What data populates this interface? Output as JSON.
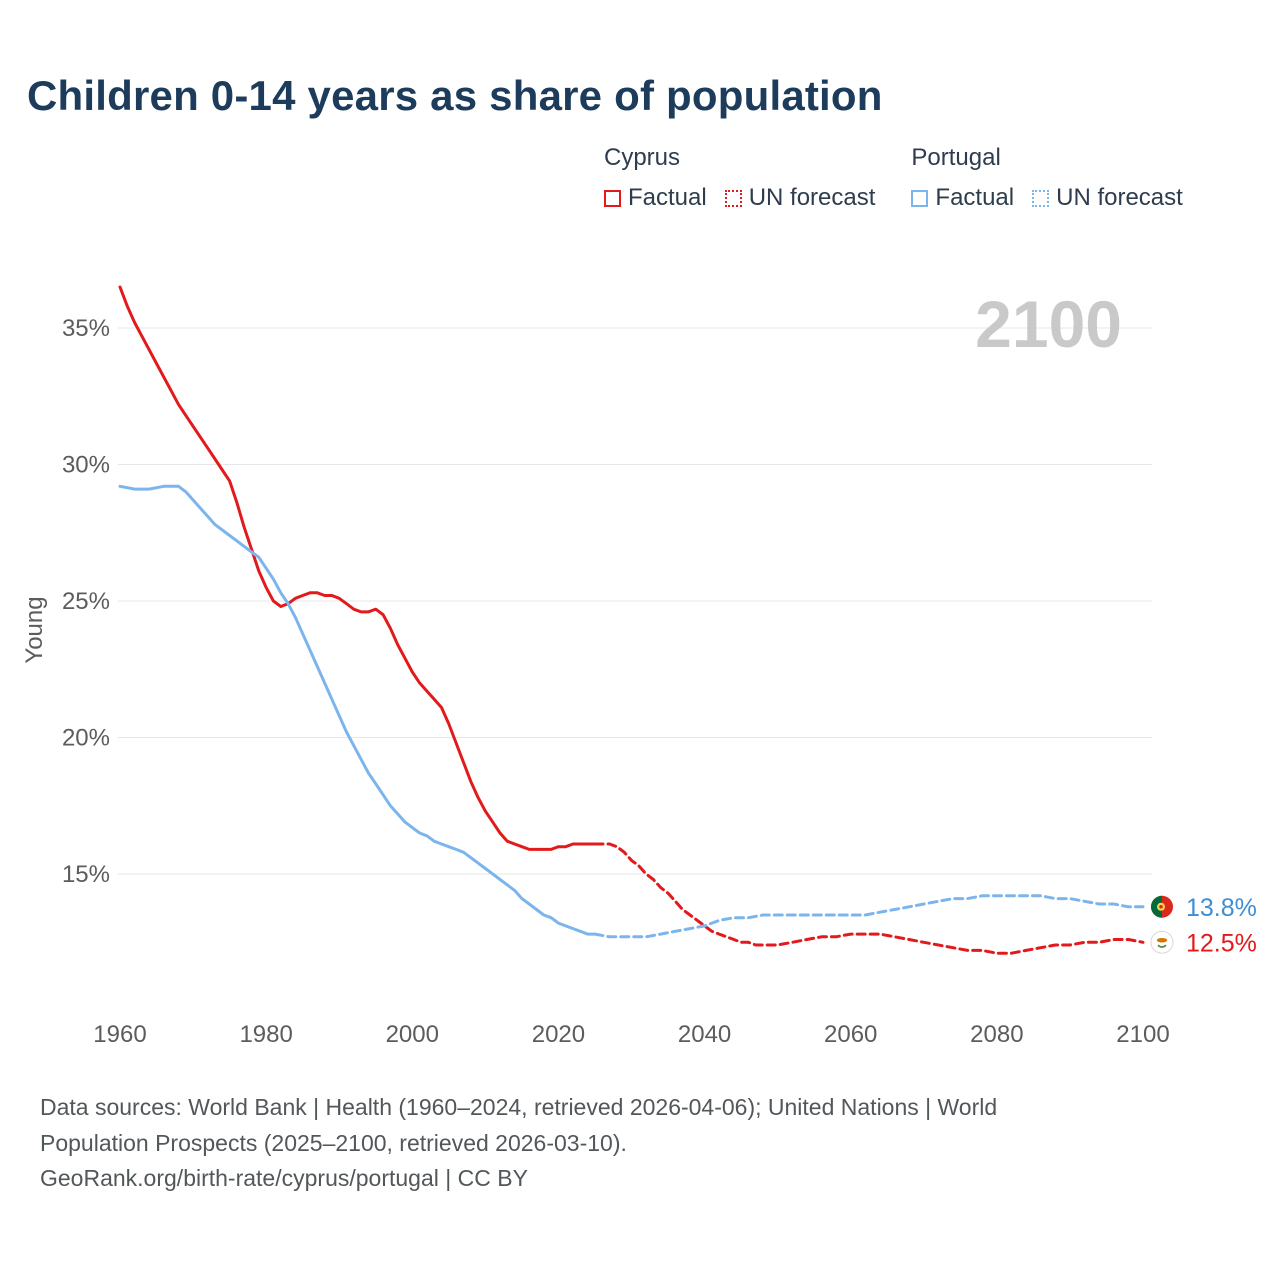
{
  "title": "Children 0-14 years as share of population",
  "colors": {
    "cyprus": "#e31a1c",
    "portugal": "#7cb5ec",
    "portugal_label": "#3e8ed6",
    "title": "#1d3c5c",
    "watermark": "#c9c9c9"
  },
  "legend": {
    "groups": [
      {
        "title": "Cyprus",
        "items": [
          {
            "label": "Factual",
            "style": "solid"
          },
          {
            "label": "UN forecast",
            "style": "dotted"
          }
        ]
      },
      {
        "title": "Portugal",
        "items": [
          {
            "label": "Factual",
            "style": "solid"
          },
          {
            "label": "UN forecast",
            "style": "dotted"
          }
        ]
      }
    ]
  },
  "chart_data": {
    "type": "line",
    "title": "Children 0-14 years as share of population",
    "xlabel": "",
    "ylabel": "Young",
    "x_ticks": [
      1960,
      1980,
      2000,
      2020,
      2040,
      2060,
      2080,
      2100
    ],
    "y_ticks": [
      15,
      20,
      25,
      30,
      35
    ],
    "xlim": [
      1960,
      2100
    ],
    "ylim": [
      11.5,
      37
    ],
    "grid": "horizontal",
    "legend_position": "top-right",
    "watermark": "2100",
    "series": [
      {
        "name": "Cyprus Factual",
        "color": "#e31a1c",
        "dash": "solid",
        "points": [
          [
            1960,
            36.5
          ],
          [
            1961,
            35.8
          ],
          [
            1962,
            35.2
          ],
          [
            1963,
            34.7
          ],
          [
            1964,
            34.2
          ],
          [
            1965,
            33.7
          ],
          [
            1966,
            33.2
          ],
          [
            1967,
            32.7
          ],
          [
            1968,
            32.2
          ],
          [
            1969,
            31.8
          ],
          [
            1970,
            31.4
          ],
          [
            1971,
            31.0
          ],
          [
            1972,
            30.6
          ],
          [
            1973,
            30.2
          ],
          [
            1974,
            29.8
          ],
          [
            1975,
            29.4
          ],
          [
            1976,
            28.6
          ],
          [
            1977,
            27.7
          ],
          [
            1978,
            26.9
          ],
          [
            1979,
            26.1
          ],
          [
            1980,
            25.5
          ],
          [
            1981,
            25.0
          ],
          [
            1982,
            24.8
          ],
          [
            1983,
            24.9
          ],
          [
            1984,
            25.1
          ],
          [
            1985,
            25.2
          ],
          [
            1986,
            25.3
          ],
          [
            1987,
            25.3
          ],
          [
            1988,
            25.2
          ],
          [
            1989,
            25.2
          ],
          [
            1990,
            25.1
          ],
          [
            1991,
            24.9
          ],
          [
            1992,
            24.7
          ],
          [
            1993,
            24.6
          ],
          [
            1994,
            24.6
          ],
          [
            1995,
            24.7
          ],
          [
            1996,
            24.5
          ],
          [
            1997,
            24.0
          ],
          [
            1998,
            23.4
          ],
          [
            1999,
            22.9
          ],
          [
            2000,
            22.4
          ],
          [
            2001,
            22.0
          ],
          [
            2002,
            21.7
          ],
          [
            2003,
            21.4
          ],
          [
            2004,
            21.1
          ],
          [
            2005,
            20.5
          ],
          [
            2006,
            19.8
          ],
          [
            2007,
            19.1
          ],
          [
            2008,
            18.4
          ],
          [
            2009,
            17.8
          ],
          [
            2010,
            17.3
          ],
          [
            2011,
            16.9
          ],
          [
            2012,
            16.5
          ],
          [
            2013,
            16.2
          ],
          [
            2014,
            16.1
          ],
          [
            2015,
            16.0
          ],
          [
            2016,
            15.9
          ],
          [
            2017,
            15.9
          ],
          [
            2018,
            15.9
          ],
          [
            2019,
            15.9
          ],
          [
            2020,
            16.0
          ],
          [
            2021,
            16.0
          ],
          [
            2022,
            16.1
          ],
          [
            2023,
            16.1
          ],
          [
            2024,
            16.1
          ],
          [
            2025,
            16.1
          ]
        ]
      },
      {
        "name": "Cyprus UN forecast",
        "color": "#e31a1c",
        "dash": "dashed",
        "points": [
          [
            2025,
            16.1
          ],
          [
            2026,
            16.1
          ],
          [
            2027,
            16.1
          ],
          [
            2028,
            16.0
          ],
          [
            2029,
            15.8
          ],
          [
            2030,
            15.5
          ],
          [
            2031,
            15.3
          ],
          [
            2032,
            15.0
          ],
          [
            2033,
            14.8
          ],
          [
            2034,
            14.5
          ],
          [
            2035,
            14.3
          ],
          [
            2036,
            14.0
          ],
          [
            2037,
            13.7
          ],
          [
            2038,
            13.5
          ],
          [
            2039,
            13.3
          ],
          [
            2040,
            13.1
          ],
          [
            2041,
            12.9
          ],
          [
            2042,
            12.8
          ],
          [
            2043,
            12.7
          ],
          [
            2044,
            12.6
          ],
          [
            2045,
            12.5
          ],
          [
            2046,
            12.5
          ],
          [
            2047,
            12.4
          ],
          [
            2048,
            12.4
          ],
          [
            2049,
            12.4
          ],
          [
            2050,
            12.4
          ],
          [
            2052,
            12.5
          ],
          [
            2054,
            12.6
          ],
          [
            2056,
            12.7
          ],
          [
            2058,
            12.7
          ],
          [
            2060,
            12.8
          ],
          [
            2062,
            12.8
          ],
          [
            2064,
            12.8
          ],
          [
            2066,
            12.7
          ],
          [
            2068,
            12.6
          ],
          [
            2070,
            12.5
          ],
          [
            2072,
            12.4
          ],
          [
            2074,
            12.3
          ],
          [
            2076,
            12.2
          ],
          [
            2078,
            12.2
          ],
          [
            2080,
            12.1
          ],
          [
            2082,
            12.1
          ],
          [
            2084,
            12.2
          ],
          [
            2086,
            12.3
          ],
          [
            2088,
            12.4
          ],
          [
            2090,
            12.4
          ],
          [
            2092,
            12.5
          ],
          [
            2094,
            12.5
          ],
          [
            2096,
            12.6
          ],
          [
            2098,
            12.6
          ],
          [
            2100,
            12.5
          ]
        ]
      },
      {
        "name": "Portugal Factual",
        "color": "#7cb5ec",
        "dash": "solid",
        "points": [
          [
            1960,
            29.2
          ],
          [
            1962,
            29.1
          ],
          [
            1964,
            29.1
          ],
          [
            1966,
            29.2
          ],
          [
            1967,
            29.2
          ],
          [
            1968,
            29.2
          ],
          [
            1969,
            29.0
          ],
          [
            1970,
            28.7
          ],
          [
            1971,
            28.4
          ],
          [
            1972,
            28.1
          ],
          [
            1973,
            27.8
          ],
          [
            1974,
            27.6
          ],
          [
            1975,
            27.4
          ],
          [
            1976,
            27.2
          ],
          [
            1977,
            27.0
          ],
          [
            1978,
            26.8
          ],
          [
            1979,
            26.6
          ],
          [
            1980,
            26.2
          ],
          [
            1981,
            25.8
          ],
          [
            1982,
            25.3
          ],
          [
            1983,
            24.9
          ],
          [
            1984,
            24.4
          ],
          [
            1985,
            23.8
          ],
          [
            1986,
            23.2
          ],
          [
            1987,
            22.6
          ],
          [
            1988,
            22.0
          ],
          [
            1989,
            21.4
          ],
          [
            1990,
            20.8
          ],
          [
            1991,
            20.2
          ],
          [
            1992,
            19.7
          ],
          [
            1993,
            19.2
          ],
          [
            1994,
            18.7
          ],
          [
            1995,
            18.3
          ],
          [
            1996,
            17.9
          ],
          [
            1997,
            17.5
          ],
          [
            1998,
            17.2
          ],
          [
            1999,
            16.9
          ],
          [
            2000,
            16.7
          ],
          [
            2001,
            16.5
          ],
          [
            2002,
            16.4
          ],
          [
            2003,
            16.2
          ],
          [
            2004,
            16.1
          ],
          [
            2005,
            16.0
          ],
          [
            2006,
            15.9
          ],
          [
            2007,
            15.8
          ],
          [
            2008,
            15.6
          ],
          [
            2009,
            15.4
          ],
          [
            2010,
            15.2
          ],
          [
            2011,
            15.0
          ],
          [
            2012,
            14.8
          ],
          [
            2013,
            14.6
          ],
          [
            2014,
            14.4
          ],
          [
            2015,
            14.1
          ],
          [
            2016,
            13.9
          ],
          [
            2017,
            13.7
          ],
          [
            2018,
            13.5
          ],
          [
            2019,
            13.4
          ],
          [
            2020,
            13.2
          ],
          [
            2021,
            13.1
          ],
          [
            2022,
            13.0
          ],
          [
            2023,
            12.9
          ],
          [
            2024,
            12.8
          ],
          [
            2025,
            12.8
          ]
        ]
      },
      {
        "name": "Portugal UN forecast",
        "color": "#7cb5ec",
        "dash": "dashed",
        "points": [
          [
            2025,
            12.8
          ],
          [
            2027,
            12.7
          ],
          [
            2029,
            12.7
          ],
          [
            2030,
            12.7
          ],
          [
            2032,
            12.7
          ],
          [
            2034,
            12.8
          ],
          [
            2036,
            12.9
          ],
          [
            2038,
            13.0
          ],
          [
            2040,
            13.1
          ],
          [
            2042,
            13.3
          ],
          [
            2044,
            13.4
          ],
          [
            2046,
            13.4
          ],
          [
            2048,
            13.5
          ],
          [
            2050,
            13.5
          ],
          [
            2052,
            13.5
          ],
          [
            2054,
            13.5
          ],
          [
            2056,
            13.5
          ],
          [
            2058,
            13.5
          ],
          [
            2060,
            13.5
          ],
          [
            2062,
            13.5
          ],
          [
            2064,
            13.6
          ],
          [
            2066,
            13.7
          ],
          [
            2068,
            13.8
          ],
          [
            2070,
            13.9
          ],
          [
            2072,
            14.0
          ],
          [
            2074,
            14.1
          ],
          [
            2076,
            14.1
          ],
          [
            2078,
            14.2
          ],
          [
            2080,
            14.2
          ],
          [
            2082,
            14.2
          ],
          [
            2084,
            14.2
          ],
          [
            2086,
            14.2
          ],
          [
            2088,
            14.1
          ],
          [
            2090,
            14.1
          ],
          [
            2092,
            14.0
          ],
          [
            2094,
            13.9
          ],
          [
            2096,
            13.9
          ],
          [
            2098,
            13.8
          ],
          [
            2100,
            13.8
          ]
        ]
      }
    ],
    "end_labels": [
      {
        "country": "Portugal",
        "flag": "portugal",
        "text": "13.8%",
        "value": 13.8,
        "color": "#3e8ed6"
      },
      {
        "country": "Cyprus",
        "flag": "cyprus",
        "text": "12.5%",
        "value": 12.5,
        "color": "#e31a1c"
      }
    ]
  },
  "footer": {
    "lines": [
      "Data sources: World Bank | Health (1960–2024, retrieved 2026-04-06); United Nations | World",
      "Population Prospects (2025–2100, retrieved 2026-03-10).",
      "GeoRank.org/birth-rate/cyprus/portugal | CC BY"
    ]
  }
}
